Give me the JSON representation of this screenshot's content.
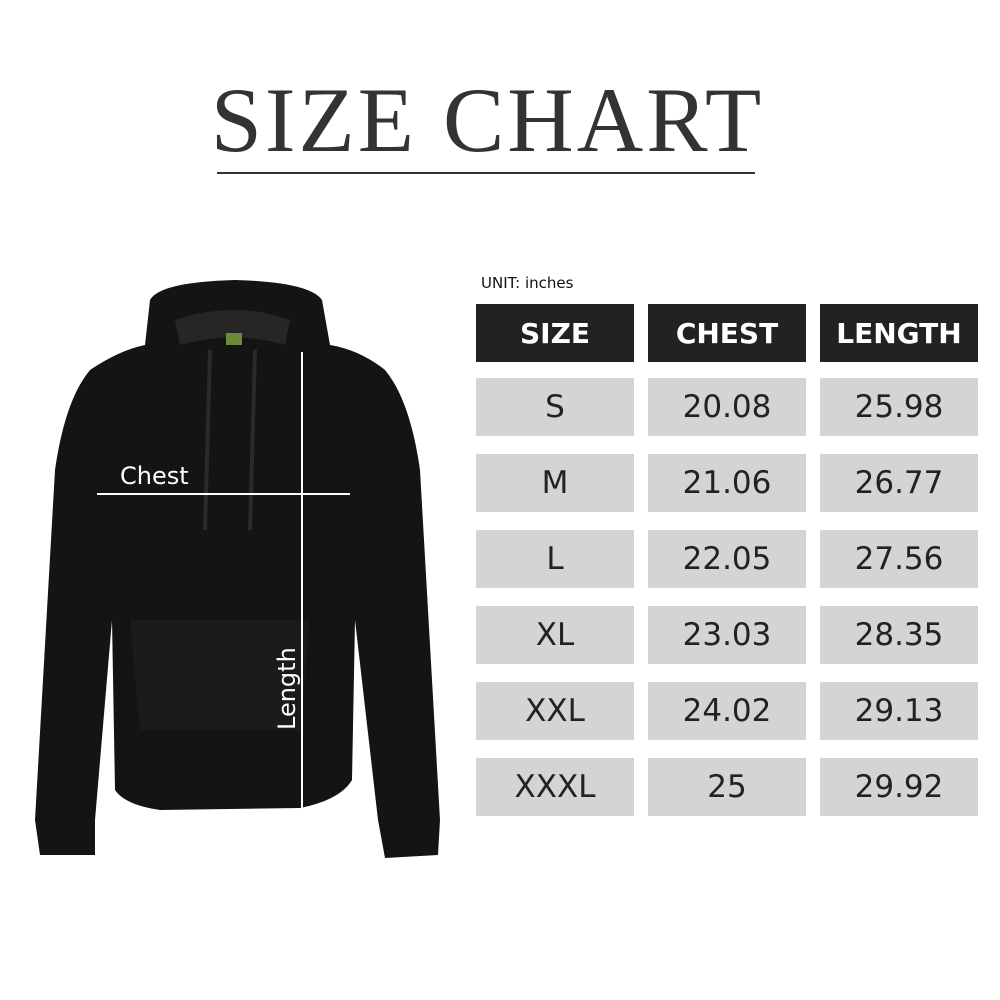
{
  "title": "SIZE CHART",
  "unit_label": "UNIT: inches",
  "measure_labels": {
    "chest": "Chest",
    "length": "Length"
  },
  "table": {
    "headers": [
      "SIZE",
      "CHEST",
      "LENGTH"
    ],
    "rows": [
      [
        "S",
        "20.08",
        "25.98"
      ],
      [
        "M",
        "21.06",
        "26.77"
      ],
      [
        "L",
        "22.05",
        "27.56"
      ],
      [
        "XL",
        "23.03",
        "28.35"
      ],
      [
        "XXL",
        "24.02",
        "29.13"
      ],
      [
        "XXXL",
        "25",
        "29.92"
      ]
    ]
  },
  "colors": {
    "header_bg": "#222222",
    "row_bg": "#d4d4d4",
    "garment": "#141414"
  }
}
